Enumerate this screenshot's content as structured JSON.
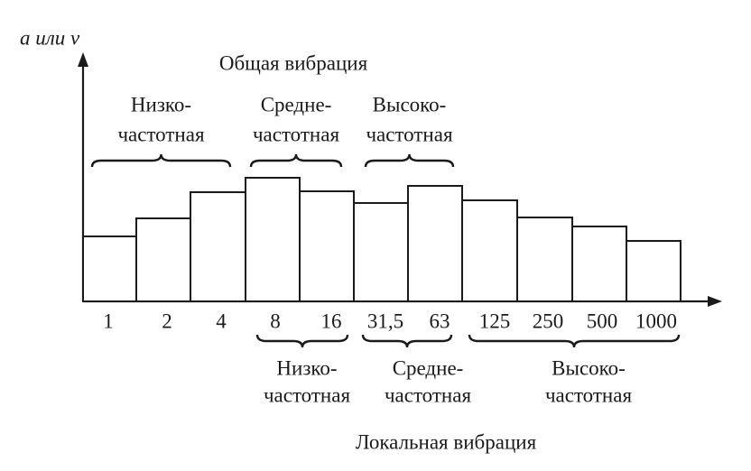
{
  "axis_label": "a или v",
  "general": {
    "title": "Общая вибрация",
    "groups": [
      {
        "line1": "Низко-",
        "line2": "частотная"
      },
      {
        "line1": "Средне-",
        "line2": "частотная"
      },
      {
        "line1": "Высоко-",
        "line2": "частотная"
      }
    ]
  },
  "categories": [
    "1",
    "2",
    "4",
    "8",
    "16",
    "31,5",
    "63",
    "125",
    "250",
    "500",
    "1000"
  ],
  "local": {
    "title": "Локальная вибрация",
    "groups": [
      {
        "line1": "Низко-",
        "line2": "частотная"
      },
      {
        "line1": "Средне-",
        "line2": "частотная"
      },
      {
        "line1": "Высоко-",
        "line2": "частотная"
      }
    ]
  }
}
